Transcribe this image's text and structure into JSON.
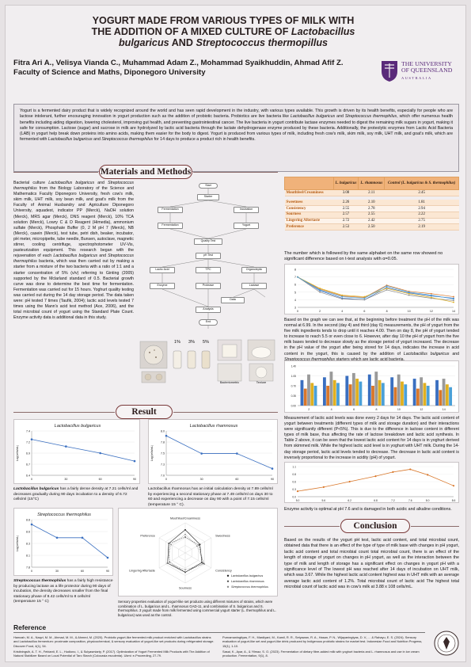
{
  "poster": {
    "title_line1": "YOGURT MADE FROM VARIOUS TYPES OF MILK WITH",
    "title_line2": "THE ADDITION OF A MIXED CULTURE OF",
    "title_line2_it": "Lactobacillus",
    "title_line3_it": "bulgaricus",
    "title_line3_mid": "AND",
    "title_line3_it2": "Streptococcus thermopillus",
    "authors": "Fitra Ari A., Velisya Vianda C., Muhammad Adam Z., Mohammad Syaikhuddin, Ahmad Afif Z.",
    "faculty": "Faculty of Science and Maths, Diponegoro University",
    "logo_line1": "THE UNIVERSITY",
    "logo_line2": "OF QUEENSLAND",
    "logo_line3": "AUSTRALIA"
  },
  "intro": {
    "p1": "Yogurt is a fermented dairy product that is widely recognized around the world and has seen rapid development in the industry, with various types available. This growth is driven by its health benefits, especially for people who are lactose intolerant, further encouraging innovation in yogurt production such as the addition of probiotic bacteria. Probiotics are live bacteria like ",
    "it1": "Lactobacillus bulgaricus",
    "p2": " and ",
    "it2": "Streptococcus thermophilus",
    "p3": ", which offer numerous health benefits including aiding digestion, lowering cholesterol, improving gut health, and preventing gastrointestinal cancer. The live bacteria in yogurt contribute lactase enzymes needed to digest the remaining milk sugars in yogurt, making it safe for consumption. Lactose (sugar) and sucrose in milk are hydrolyzed by lactic acid bacteria through the lactate dehydrogenase enzyme produced by these bacteria. Additionally, the proteolytic enzymes from Lactic Acid Bacteria (LAB) in yogurt help break down proteins into amino acids, making them easier for the body to digest. Yogurt is produced from various types of milk, including fresh cow's milk, skim milk, soy milk, UHT milk, and goat's milk, which are fermented with ",
    "it3": "Lactobacillus bulgaricus",
    "p4": " and ",
    "it4": "Streptococcus thermophilus",
    "p5": " for 14 days to produce a product rich in health benefits."
  },
  "sections": {
    "methods": "Materials and Methods",
    "result": "Result",
    "conclusion": "Conclusion",
    "reference": "Reference"
  },
  "methods": {
    "p1": "Bacterial culture ",
    "it1": "Lactobacillus bulgaricus",
    "p2": " and ",
    "it2": "Streptococcus thermophilus",
    "p3": " from the Biology Laboratory of the Science and Mathematics Faculty Diponegoro University, fresh cow's milk, skim milk, UHT milk, soy bean milk, and goat's milk from the Faculty of Animal Husbandry and Agriculture Diponegoro University, aquadest, indicator PP (Merck), NaOH solution (Merck), MRS agar (Merck), DNS reagent (Merck), 10% TCA solution (Merck), Lowry C & D Reagent (Himedia), ammonium sulfate (Merck), Phosphate Buffer (0, 2 M pH 7 (Merck), NB (Merck), casein (Merck), test tube, petri dish, beaker, incubator, pH meter, micropipette, tube needle, Bunsen, autoclave, magnetic stirrer, cooling centrifuge, spectrophotometer UV-Vis, pasteurization equipment. This research began with the rejuvenation of each ",
    "it3": "Lactobacillus bulgaricus",
    "p4": " and ",
    "it4": "Streptococcus thermophilus",
    "p5": " bacteria, which was then carried out by making a starter from a mixture of the two bacteria with a ratio of 1:1 and a starter concentration of 5% (v/v) referring to Ginting (2005) supported by the Mclarland standard of 0.5. Bacterial growth curve was done to determine the best time for fermentation. Fermentation was carried out for 15 hours. Yoghurt quality testing was carried out during the 14 day storage period. The data taken were: pH tested 7 times (Taufik, 2004); lactic acid levels tested 7 times using the Mann's acid test method (Ace, 2006), and the total microbial count of yogurt using the Standard Plate Count. Enzyme activity data is additional data in this study."
  },
  "flow": {
    "n1": "Start",
    "n2": "Starter",
    "n3": "Fermentation",
    "n4": "Incubation",
    "n5": "Fermentation",
    "n6": "Yogurt",
    "n7": "Quality Test",
    "n8": "pH Test",
    "n9": "Lactic Acid",
    "n10": "TPC",
    "n11": "Organoleptic",
    "n12": "Enzyme",
    "n13": "Protease",
    "n14": "Lactase",
    "n15": "Data",
    "n16": "Analysis",
    "n17": "End"
  },
  "photos": {
    "label1": "1%",
    "label2": "3%",
    "label3": "5%",
    "cap1": "Bacteriometric",
    "cap2": "Texture"
  },
  "table": {
    "col0": "",
    "col1": "L. bulgaricus",
    "col2": "L. rhamnosus",
    "col3": "Control (L. bulgaricus & S. thermophilus)",
    "rows": [
      {
        "label": "Mouthfeel/Creaminess",
        "v1": "3.08",
        "v2": "2.11",
        "v3": "2.45"
      },
      {
        "label": "Sweetness",
        "v1": "2.26",
        "v2": "2.10",
        "v3": "1.81"
      },
      {
        "label": "Consistency",
        "v1": "2.55",
        "v2": "2.78",
        "v3": "2.94"
      },
      {
        "label": "Sourness",
        "v1": "2.57",
        "v2": "2.55",
        "v3": "2.22"
      },
      {
        "label": "Lingering Aftertaste",
        "v1": "2.72",
        "v2": "2.42",
        "v3": "2.75"
      },
      {
        "label": "Preference",
        "v1": "2.53",
        "v2": "2.50",
        "v3": "2.19"
      }
    ],
    "note": "The number which is followed by the same alphabet on the same row showed no significant difference based on t-test analysis with α=0.05."
  },
  "ph_text": {
    "p1": "Based on the graph we can see that, at the beginning before treatment the pH of the milk was normal at 6.99. In the second (day 4) and third (day 6) measurements, the pH of yogurt from the five milk ingredients tends to drop until it reaches 4.00. Then on day 8, the pH of yogurt tended to increase to reach 5.5 or even close to 6. However, after day 10 the pH of yogurt from the five milk bases tended to decrease slowly as the storage period of yogurt increased. The decrease in the pH value of the yogurt after being stored for 14 days, indicates the increase in acid content in the yogurt, this is caused by the addition of ",
    "it1": "Lactobacillus bulgaricus",
    "p2": " and ",
    "it2": "Streptococcus thermophilus",
    "p3": " starters which are lactic acid bacteria."
  },
  "lactic_text": "Measurement of lactic acid levels was done every 2 days for 14 days. The lactic acid content of yogurt between treatments (different types of milk and storage duration) and their interactions were significantly different (P<5%). This is due to the difference in lactose content in different types of milk base, thus affecting the rate of lactose breakdown and lactic acid synthesis. In Table 2 above, it can be seen that the lowest lactic acid content for 14 days is in yoghurt derived from skimmed milk. While the highest lactic acid level is in yoghurt with UHT milk. During the 14-day storage period, lactic acid levels tended to decrease. The decrease in lactic acid content is inversely proportional to the increase in acidity (pH) of yogurt.",
  "enzyme_caption": "Enzyme activity is optimal at pH 7.6 and is damaged in both acidic and alkaline conditions.",
  "conclusion": "Based on the results of the yogurt pH test, lactic acid content, and total microbial count, obtained data that there is an effect of the type of type of milk base with changes in pH yogurt, lactic acid content and total microbial count total microbial count, there is an effect of the length of storage of yogurt on changes in pH yogurt, as well as the interaction between the type of milk and length of storage has a significant effect on changes in yogurt pH with a significance level of The lowest pH was reached after 14 days of incubation on UHT milk, which was 3.67. While the highest lactic acid content highest was in UHT milk with an average average lactic acid content of 1.2%. Total microbial count of lactic acid  The highest total microbial count of lactic acid was in cow's milk at 3.88 x 108 cells/mL.",
  "chart1": {
    "title": "Lactobacillus bulgaricus",
    "ylabel": "Log(cells/mL)",
    "caption_it": "Lactobacillus bulgaricus",
    "caption": " has a fairly dense density at 7.21 cells/ml and decreases gradually during 90 days incubation to a density of 6.72 cells/ml (15°C)"
  },
  "chart2": {
    "title": "Lactobacillus rhamnosus",
    "ylabel": "Log(cells/mL)",
    "caption": "Lactobacillus rhamnosus has an initial calculation density at 7.89 cells/ml by experiencing a second stationary phase at 7.49 cells/ml on days 30 to 60 and experiencing a decrease on day 90 with a point of 7.15 cells/ml (temperature 15 ° C)."
  },
  "chart3": {
    "title": "Streptococcus thermophilus",
    "ylabel": "Log(cells/mL)",
    "caption_it": "Streptococcus thermophilus",
    "caption": " has a fairly high resistance by producing lactase as a life protector during 90 days of incubation, the density decreases smaller from the final stationary phase of 8.42 cells/ml to 8 cells/ml (temperature 15 ° C)"
  },
  "radar": {
    "axes": [
      "Mouthfeel/Creaminess",
      "Sweetness",
      "Consistency",
      "Sourness",
      "Lingering Aftertaste",
      "Preference"
    ],
    "legend1": "Lactobacillus bulgaricus",
    "legend2": "Lactobacillus rhamnosus",
    "legend3": "Streptococcus thermophilus",
    "caption": "Sensory properties evaluation of yogurt-like set products using different mixtures of strains, which were combination of L. bulgaricus and L. rhamnosus GAD-11, and combination of S. bulgaricus and S. thermophilus. 3 yogurt made from milk fermented using commercial yogurt starter (L. thermophilus and L. bulgaricus) was used as the control."
  },
  "chart_data": [
    {
      "type": "line",
      "title": "Lactobacillus bulgaricus",
      "x": [
        0,
        30,
        60,
        90
      ],
      "series": [
        {
          "name": "",
          "values": [
            7.21,
            7.05,
            6.9,
            6.72
          ]
        }
      ],
      "ylabel": "Log(cells/mL)",
      "ylim": [
        6.4,
        7.4
      ],
      "grid": true
    },
    {
      "type": "line",
      "title": "Lactobacillus rhamnosus",
      "x": [
        0,
        30,
        60,
        90
      ],
      "series": [
        {
          "name": "",
          "values": [
            7.89,
            7.49,
            7.49,
            7.15
          ]
        }
      ],
      "ylabel": "Log(cells/mL)",
      "ylim": [
        7.0,
        8.0
      ],
      "grid": true
    },
    {
      "type": "line",
      "title": "Streptococcus thermophilus",
      "x": [
        0,
        30,
        60,
        90
      ],
      "series": [
        {
          "name": "",
          "values": [
            8.7,
            8.42,
            8.42,
            8.0
          ]
        }
      ],
      "ylabel": "Log(cells/mL)",
      "ylim": [
        7.8,
        8.8
      ],
      "grid": true
    },
    {
      "type": "line",
      "title": "",
      "x": [
        0,
        2,
        4,
        6,
        8,
        10,
        12,
        14
      ],
      "series": [
        {
          "name": "",
          "values": [
            6.99,
            5.2,
            4.2,
            4.0,
            5.6,
            4.9,
            4.5,
            4.2
          ]
        },
        {
          "name": "",
          "values": [
            6.99,
            5.4,
            4.5,
            4.3,
            5.9,
            5.1,
            4.8,
            4.4
          ]
        },
        {
          "name": "",
          "values": [
            6.99,
            5.0,
            4.1,
            4.0,
            5.3,
            4.6,
            4.2,
            3.9
          ]
        },
        {
          "name": "",
          "values": [
            6.99,
            5.5,
            4.6,
            4.4,
            5.5,
            4.8,
            4.3,
            3.67
          ]
        },
        {
          "name": "",
          "values": [
            6.99,
            5.3,
            4.4,
            4.2,
            5.8,
            5.0,
            4.6,
            4.1
          ]
        }
      ],
      "ylim": [
        3,
        8
      ],
      "grid": true
    },
    {
      "type": "bar",
      "title": "",
      "categories": [
        "2",
        "4",
        "6",
        "8",
        "10",
        "12",
        "14"
      ],
      "series": [
        {
          "name": "",
          "values": [
            0.9,
            1.0,
            1.05,
            1.1,
            1.0,
            0.95,
            0.9
          ]
        },
        {
          "name": "",
          "values": [
            0.6,
            0.7,
            0.75,
            0.7,
            0.65,
            0.6,
            0.55
          ]
        },
        {
          "name": "",
          "values": [
            1.1,
            1.2,
            1.15,
            1.2,
            1.1,
            1.0,
            0.95
          ]
        },
        {
          "name": "",
          "values": [
            0.8,
            0.9,
            0.95,
            0.9,
            0.85,
            0.8,
            0.75
          ]
        },
        {
          "name": "",
          "values": [
            0.7,
            0.8,
            0.85,
            0.8,
            0.75,
            0.7,
            0.65
          ]
        }
      ],
      "ylim": [
        0,
        1.4
      ],
      "grid": true
    },
    {
      "type": "line",
      "title": "",
      "x": [
        5.0,
        5.6,
        6.2,
        6.8,
        7.2,
        7.6,
        8.0,
        8.6
      ],
      "series": [
        {
          "name": "",
          "values": [
            0.2,
            0.35,
            0.55,
            0.75,
            0.9,
            1.0,
            0.8,
            0.4
          ]
        }
      ],
      "ylim": [
        0,
        1.1
      ],
      "grid": true
    },
    {
      "type": "radar",
      "axes": [
        "Mouthfeel/Creaminess",
        "Sweetness",
        "Consistency",
        "Sourness",
        "Lingering Aftertaste",
        "Preference"
      ],
      "series": [
        {
          "name": "Lactobacillus bulgaricus",
          "values": [
            3.08,
            2.26,
            2.55,
            2.57,
            2.72,
            2.53
          ]
        },
        {
          "name": "Lactobacillus rhamnosus",
          "values": [
            2.11,
            2.1,
            2.78,
            2.55,
            2.42,
            2.5
          ]
        },
        {
          "name": "Streptococcus thermophilus",
          "values": [
            2.45,
            1.81,
            2.94,
            2.22,
            2.75,
            2.19
          ]
        }
      ],
      "ylim": [
        0,
        4
      ]
    }
  ],
  "references": {
    "r1": "Hamzah, M. A., Naqvi, M. M., Ahmad, M. M., & Ahmed, M. (2020). Probiotic yogurt-like fermented milk product enriched with Lactobacillus strains and Lactobacillus fermentum: proximate composition, physicochemical, & sensory evaluation of yogurt-like set products during refrigerated storage. Discover Food, 4(1), 54.",
    "r2": "Kristiningsih, A. T. H., Febianti, E. L., Hudiono, I., & Sulyasmiarty, P. (2017). Optimization of Yogurt Fermented Milk Products with The Addition of Natural Stabilizer Based on Local Potential of Taro Starch (Colocasia esculenta). Ukmi: e-Proceeding, 27-79.",
    "r3": "Purnamaningtiyas, F. H., Mardiyani, M., Kamil, R. R., Setyawan, R. A., Hasan, P. N., Wijayaningtyas, D. V., ... & Rahayu, E. S. (2024). Sensory evaluation of yogurt-like set and yogurt-like drink produced by Indigenous probiotic strains for market test. Indonesian Food and Nutrition Progress, 15(1), 1-10.",
    "r4": "Sasai, K., Ayar, A., & Yilmaz, S. O. (2023). Fermentation of dietary fibre-added milk with yoghurt bacteria and L. rhamnosus and use in ice cream production. Fermentation, 9(1), 8."
  },
  "colors": {
    "accent_orange": "#f0b27a",
    "uq_purple": "#5a2a7a",
    "line_blue": "#3a6fc0"
  }
}
